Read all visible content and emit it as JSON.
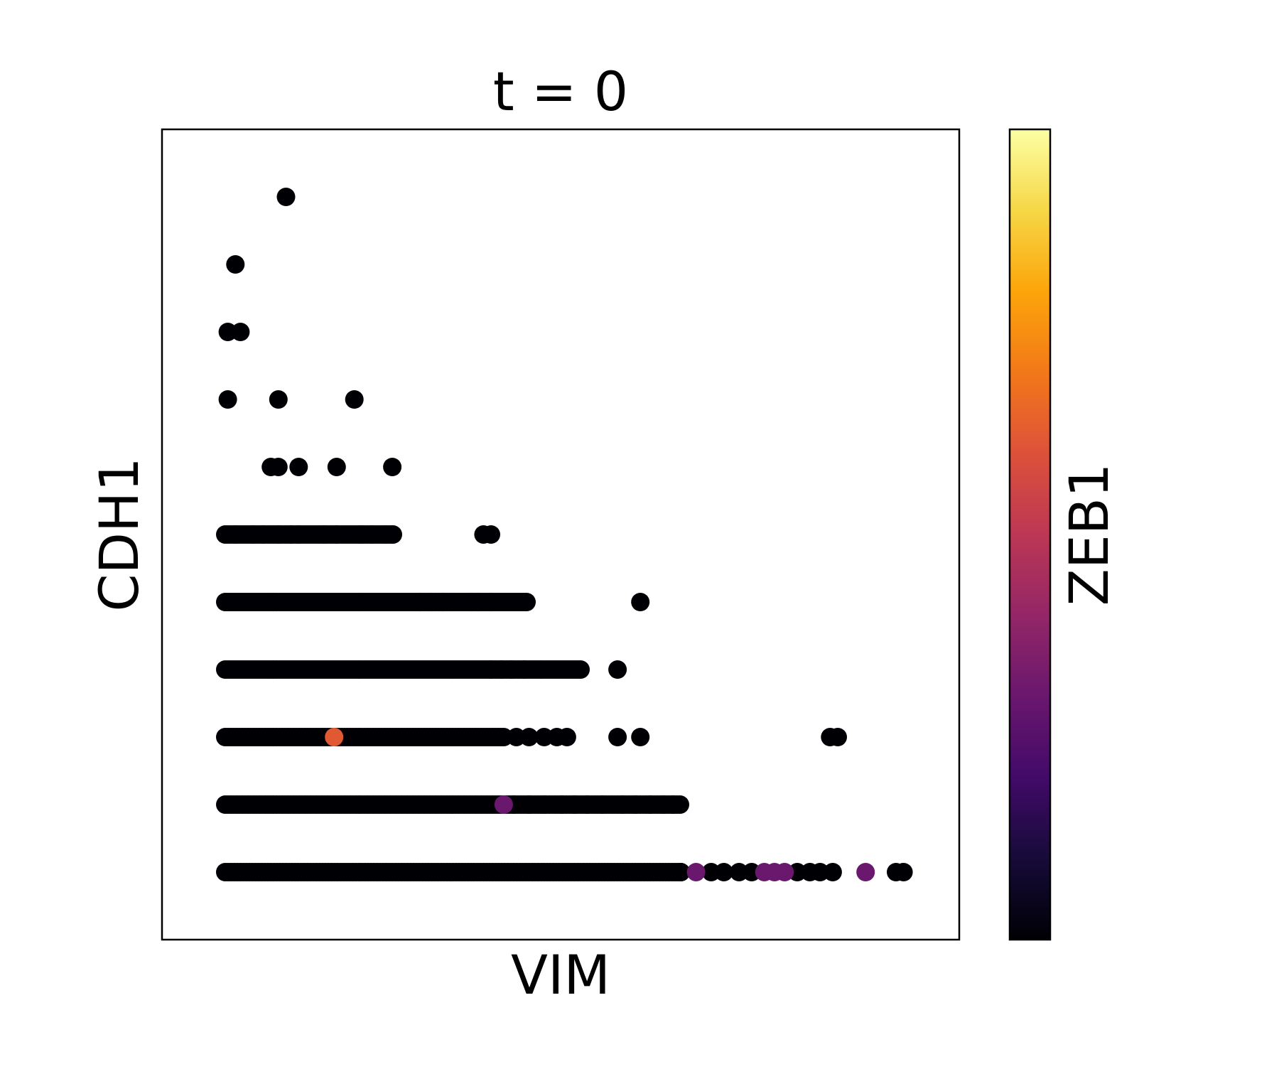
{
  "chart_data": {
    "type": "scatter",
    "title": "t = 0",
    "xlabel": "VIM",
    "ylabel": "CDH1",
    "colorbar_label": "ZEB1",
    "colormap": "inferno",
    "color_range": [
      0,
      1
    ],
    "xlim": [
      -2.5,
      29
    ],
    "ylim": [
      -1,
      11
    ],
    "grid": false,
    "show_ticks": false,
    "points": [
      {
        "x": 2.4,
        "y": 10,
        "c": 0
      },
      {
        "x": 0.4,
        "y": 9,
        "c": 0
      },
      {
        "x": 0.1,
        "y": 8,
        "c": 0
      },
      {
        "x": 0.6,
        "y": 8,
        "c": 0
      },
      {
        "x": 0.1,
        "y": 7,
        "c": 0
      },
      {
        "x": 2.1,
        "y": 7,
        "c": 0
      },
      {
        "x": 5.1,
        "y": 7,
        "c": 0
      },
      {
        "x": 1.8,
        "y": 6,
        "c": 0
      },
      {
        "x": 2.1,
        "y": 6,
        "c": 0
      },
      {
        "x": 2.9,
        "y": 6,
        "c": 0
      },
      {
        "x": 4.4,
        "y": 6,
        "c": 0
      },
      {
        "x": 6.6,
        "y": 6,
        "c": 0
      },
      {
        "x": 0.4,
        "y": 5,
        "c": 0
      },
      {
        "x": 1.1,
        "y": 5,
        "c": 0
      },
      {
        "x": 1.5,
        "y": 5,
        "c": 0
      },
      {
        "x": 2.1,
        "y": 5,
        "c": 0
      },
      {
        "x": 2.6,
        "y": 5,
        "c": 0
      },
      {
        "x": 2.9,
        "y": 5,
        "c": 0
      },
      {
        "x": 3.9,
        "y": 5,
        "c": 0
      },
      {
        "x": 4.4,
        "y": 5,
        "c": 0
      },
      {
        "x": 5.4,
        "y": 5,
        "c": 0
      },
      {
        "x": 5.8,
        "y": 5,
        "c": 0
      },
      {
        "x": 6.3,
        "y": 5,
        "c": 0
      },
      {
        "x": 6.6,
        "y": 5,
        "c": 0
      },
      {
        "x": 10.2,
        "y": 5,
        "c": 0
      },
      {
        "x": 10.5,
        "y": 5,
        "c": 0
      },
      {
        "x": 7.7,
        "y": 4,
        "c": 0
      },
      {
        "x": 8.1,
        "y": 4,
        "c": 0
      },
      {
        "x": 8.6,
        "y": 4,
        "c": 0
      },
      {
        "x": 9.7,
        "y": 4,
        "c": 0
      },
      {
        "x": 10.0,
        "y": 4,
        "c": 0
      },
      {
        "x": 10.5,
        "y": 4,
        "c": 0
      },
      {
        "x": 16.4,
        "y": 4,
        "c": 0
      },
      {
        "x": 10.5,
        "y": 3,
        "c": 0
      },
      {
        "x": 10.9,
        "y": 3,
        "c": 0
      },
      {
        "x": 11.3,
        "y": 3,
        "c": 0
      },
      {
        "x": 11.8,
        "y": 3,
        "c": 0
      },
      {
        "x": 15.5,
        "y": 3,
        "c": 0
      },
      {
        "x": 4.3,
        "y": 2,
        "c": 0.62
      },
      {
        "x": 11.0,
        "y": 2,
        "c": 0
      },
      {
        "x": 11.5,
        "y": 2,
        "c": 0
      },
      {
        "x": 12.0,
        "y": 2,
        "c": 0
      },
      {
        "x": 12.6,
        "y": 2,
        "c": 0
      },
      {
        "x": 13.1,
        "y": 2,
        "c": 0
      },
      {
        "x": 13.5,
        "y": 2,
        "c": 0
      },
      {
        "x": 15.5,
        "y": 2,
        "c": 0
      },
      {
        "x": 16.4,
        "y": 2,
        "c": 0
      },
      {
        "x": 23.9,
        "y": 2,
        "c": 0
      },
      {
        "x": 24.2,
        "y": 2,
        "c": 0
      },
      {
        "x": 11.0,
        "y": 1,
        "c": 0.3
      },
      {
        "x": 11.4,
        "y": 1,
        "c": 0
      },
      {
        "x": 12.0,
        "y": 1,
        "c": 0
      },
      {
        "x": 12.6,
        "y": 1,
        "c": 0
      },
      {
        "x": 13.3,
        "y": 1,
        "c": 0
      },
      {
        "x": 13.8,
        "y": 1,
        "c": 0
      },
      {
        "x": 14.3,
        "y": 1,
        "c": 0
      },
      {
        "x": 14.9,
        "y": 1,
        "c": 0
      },
      {
        "x": 15.7,
        "y": 1,
        "c": 0
      },
      {
        "x": 16.2,
        "y": 1,
        "c": 0
      },
      {
        "x": 16.8,
        "y": 1,
        "c": 0
      },
      {
        "x": 17.3,
        "y": 1,
        "c": 0
      },
      {
        "x": 17.7,
        "y": 1,
        "c": 0
      },
      {
        "x": 18.0,
        "y": 0,
        "c": 0
      },
      {
        "x": 18.6,
        "y": 0,
        "c": 0.3
      },
      {
        "x": 19.2,
        "y": 0,
        "c": 0
      },
      {
        "x": 19.7,
        "y": 0,
        "c": 0
      },
      {
        "x": 20.3,
        "y": 0,
        "c": 0
      },
      {
        "x": 20.8,
        "y": 0,
        "c": 0
      },
      {
        "x": 21.3,
        "y": 0,
        "c": 0.3
      },
      {
        "x": 21.7,
        "y": 0,
        "c": 0.3
      },
      {
        "x": 22.1,
        "y": 0,
        "c": 0.3
      },
      {
        "x": 22.6,
        "y": 0,
        "c": 0
      },
      {
        "x": 23.1,
        "y": 0,
        "c": 0
      },
      {
        "x": 23.5,
        "y": 0,
        "c": 0
      },
      {
        "x": 24.0,
        "y": 0,
        "c": 0
      },
      {
        "x": 25.3,
        "y": 0,
        "c": 0.3
      },
      {
        "x": 26.5,
        "y": 0,
        "c": 0
      },
      {
        "x": 26.8,
        "y": 0,
        "c": 0
      }
    ],
    "dense_rows": [
      {
        "y": 5,
        "x_start": 0.0,
        "x_end": 6.7,
        "c": 0
      },
      {
        "y": 4,
        "x_start": 0.0,
        "x_end": 12.0,
        "c": 0
      },
      {
        "y": 3,
        "x_start": 0.0,
        "x_end": 14.1,
        "c": 0
      },
      {
        "y": 2,
        "x_start": 0.0,
        "x_end": 11.0,
        "c": 0
      },
      {
        "y": 1,
        "x_start": 0.0,
        "x_end": 18.0,
        "c": 0
      }
    ]
  }
}
